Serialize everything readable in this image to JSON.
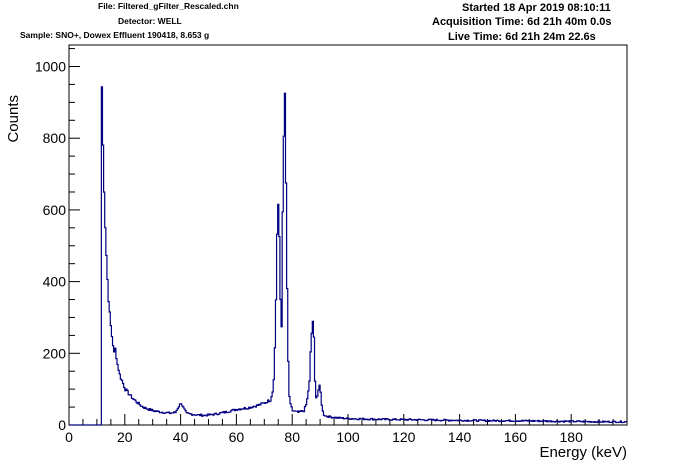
{
  "header": {
    "file": "File: Filtered_gFilter_Rescaled.chn",
    "detector": "Detector: WELL",
    "sample": "Sample: SNO+, Dowex Effluent 190418, 8.653 g",
    "started": "Started 18 Apr 2019 08:10:11",
    "acquisition_time": "Acquisition Time: 6d 21h 40m 0.0s",
    "live_time": "Live Time: 6d 21h 24m 22.6s"
  },
  "chart_data": {
    "type": "line",
    "xlabel": "Energy (keV)",
    "ylabel": "Counts",
    "xlim": [
      0,
      200
    ],
    "ylim": [
      0,
      1060
    ],
    "x_ticks": [
      0,
      20,
      40,
      60,
      80,
      100,
      120,
      140,
      160,
      180
    ],
    "y_ticks": [
      0,
      200,
      400,
      600,
      800,
      1000
    ],
    "line_color": "#000080",
    "profile": [
      [
        0,
        0
      ],
      [
        11.4,
        0
      ],
      [
        11.5,
        1005
      ],
      [
        11.8,
        820
      ],
      [
        12.1,
        760
      ],
      [
        12.5,
        620
      ],
      [
        13.0,
        510
      ],
      [
        13.5,
        420
      ],
      [
        14.0,
        350
      ],
      [
        14.5,
        300
      ],
      [
        15.0,
        260
      ],
      [
        15.5,
        230
      ],
      [
        16.0,
        200
      ],
      [
        16.5,
        215
      ],
      [
        17.0,
        175
      ],
      [
        17.5,
        160
      ],
      [
        18.0,
        140
      ],
      [
        18.5,
        130
      ],
      [
        19.0,
        120
      ],
      [
        19.5,
        110
      ],
      [
        20.0,
        100
      ],
      [
        21,
        90
      ],
      [
        22,
        80
      ],
      [
        23,
        72
      ],
      [
        24,
        65
      ],
      [
        25,
        58
      ],
      [
        26,
        52
      ],
      [
        27,
        48
      ],
      [
        28,
        45
      ],
      [
        30,
        40
      ],
      [
        32,
        37
      ],
      [
        34,
        35
      ],
      [
        36,
        33
      ],
      [
        38,
        35
      ],
      [
        39,
        50
      ],
      [
        40,
        62
      ],
      [
        41,
        45
      ],
      [
        42,
        32
      ],
      [
        44,
        30
      ],
      [
        46,
        28
      ],
      [
        48,
        27
      ],
      [
        50,
        28
      ],
      [
        52,
        30
      ],
      [
        54,
        33
      ],
      [
        56,
        36
      ],
      [
        58,
        40
      ],
      [
        60,
        44
      ],
      [
        62,
        46
      ],
      [
        64,
        48
      ],
      [
        66,
        52
      ],
      [
        68,
        56
      ],
      [
        70,
        62
      ],
      [
        72,
        70
      ],
      [
        73,
        100
      ],
      [
        73.5,
        180
      ],
      [
        74,
        350
      ],
      [
        74.5,
        580
      ],
      [
        74.8,
        615
      ],
      [
        75.2,
        520
      ],
      [
        75.6,
        350
      ],
      [
        76.0,
        275
      ],
      [
        76.4,
        600
      ],
      [
        76.8,
        800
      ],
      [
        77.1,
        960
      ],
      [
        77.4,
        850
      ],
      [
        77.8,
        500
      ],
      [
        78.2,
        250
      ],
      [
        78.6,
        100
      ],
      [
        79,
        60
      ],
      [
        80,
        40
      ],
      [
        82,
        35
      ],
      [
        84,
        40
      ],
      [
        85,
        60
      ],
      [
        86,
        120
      ],
      [
        86.5,
        220
      ],
      [
        87,
        280
      ],
      [
        87.3,
        295
      ],
      [
        87.6,
        240
      ],
      [
        88,
        120
      ],
      [
        88.5,
        70
      ],
      [
        89,
        90
      ],
      [
        89.5,
        110
      ],
      [
        90,
        90
      ],
      [
        90.5,
        50
      ],
      [
        91,
        30
      ],
      [
        92,
        25
      ],
      [
        94,
        22
      ],
      [
        96,
        20
      ],
      [
        100,
        18
      ],
      [
        110,
        16
      ],
      [
        120,
        15
      ],
      [
        130,
        14
      ],
      [
        140,
        13
      ],
      [
        150,
        12
      ],
      [
        160,
        12
      ],
      [
        170,
        11
      ],
      [
        180,
        10
      ],
      [
        190,
        9
      ],
      [
        200,
        9
      ]
    ]
  }
}
